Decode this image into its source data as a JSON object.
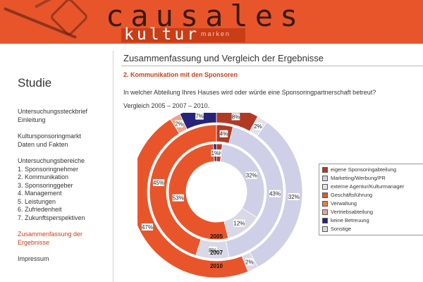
{
  "header": {
    "brand_top": "causales",
    "brand_main": "kultur",
    "brand_sub": "marken"
  },
  "sidebar": {
    "title": "Studie",
    "groups": [
      {
        "lines": [
          "Untersuchungssteckbrief",
          "Einleitung"
        ]
      },
      {
        "lines": [
          "Kultursponsoringmarkt",
          "Daten und Fakten"
        ]
      },
      {
        "lines": [
          "Untersuchungsbereiche",
          "1. Sponsoringnehmer",
          "2. Kommunikation",
          "3. Sponsoringgeber",
          "4. Management",
          "5. Leistungen",
          "6. Zufriedenheit",
          "7. Zukunftsperspektiven"
        ]
      },
      {
        "lines": [
          "Zusammenfassung der",
          "Ergebnisse"
        ],
        "active": true
      },
      {
        "lines": [
          "Impressum"
        ]
      }
    ]
  },
  "main": {
    "title": "Zusammenfassung und Vergleich der Ergebnisse",
    "section": "2. Kommunikation mit den Sponsoren",
    "question": "In welcher Abteilung Ihres Hauses wird oder würde eine Sponsoringpartnerschaft betreut?",
    "period": "Vergleich 2005 – 2007 – 2010."
  },
  "chart_data": {
    "type": "pie",
    "subtype": "multi-ring donut",
    "categories": [
      "eigene Sponsoringabteilung",
      "Marketing/Werbung/PR",
      "externe Agentur/Kulturmanager",
      "Geschäftsführung",
      "Verwaltung",
      "Vertriebsabteilung",
      "keine Betreuung",
      "Sonstige"
    ],
    "colors": [
      "#b13a25",
      "#cfcfe8",
      "#e2e2ee",
      "#e8552b",
      "#ef7b3c",
      "#f0a48a",
      "#27237a",
      "#d8d8e6"
    ],
    "series": [
      {
        "name": "2005",
        "values": [
          2,
          32,
          0,
          53,
          0,
          0,
          1,
          12
        ]
      },
      {
        "name": "2007",
        "values": [
          4,
          43,
          0,
          45,
          0,
          0,
          0,
          8
        ]
      },
      {
        "name": "2010",
        "values": [
          8,
          32,
          2,
          47,
          0,
          2,
          7,
          2
        ]
      }
    ],
    "legend_position": "right"
  }
}
